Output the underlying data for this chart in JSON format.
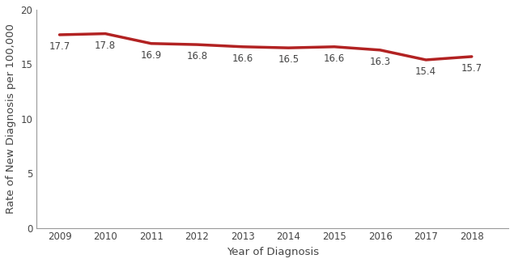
{
  "years": [
    2009,
    2010,
    2011,
    2012,
    2013,
    2014,
    2015,
    2016,
    2017,
    2018
  ],
  "values": [
    17.7,
    17.8,
    16.9,
    16.8,
    16.6,
    16.5,
    16.6,
    16.3,
    15.4,
    15.7
  ],
  "line_color": "#B22222",
  "line_width": 2.5,
  "xlabel": "Year of Diagnosis",
  "ylabel": "Rate of New Diagnosis per 100,000",
  "ylim": [
    0,
    20
  ],
  "yticks": [
    0,
    5,
    10,
    15,
    20
  ],
  "xlim": [
    2008.5,
    2018.8
  ],
  "annotation_fontsize": 8.5,
  "axis_label_fontsize": 9.5,
  "tick_fontsize": 8.5,
  "background_color": "#ffffff",
  "spine_color": "#999999",
  "text_color": "#444444"
}
